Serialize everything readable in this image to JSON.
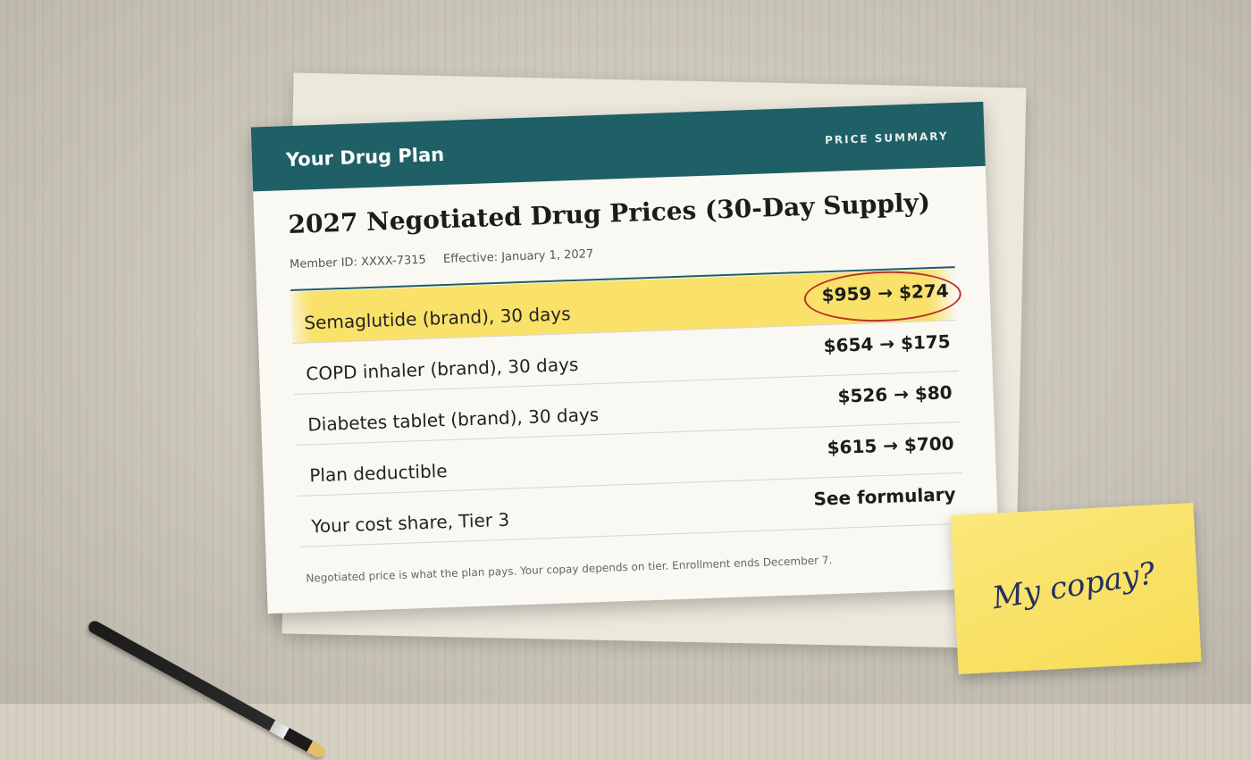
{
  "header": {
    "title": "Your Drug Plan",
    "label": "PRICE SUMMARY"
  },
  "document": {
    "title": "2027 Negotiated Drug Prices (30-Day Supply)",
    "member_id": "Member ID: XXXX-7315",
    "effective": "Effective: January 1, 2027"
  },
  "table": {
    "rows": [
      [
        "Semaglutide (brand), 30 days",
        "$959 → $274"
      ],
      [
        "COPD inhaler (brand), 30 days",
        "$654 → $175"
      ],
      [
        "Diabetes tablet (brand), 30 days",
        "$526 → $80"
      ],
      [
        "Plan deductible",
        "$615 → $700"
      ],
      [
        "Your cost share, Tier 3",
        "See formulary"
      ]
    ]
  },
  "footnote": "Negotiated price is what the plan pays. Your copay depends on tier. Enrollment ends December 7.",
  "sticky_note": "My copay?"
}
